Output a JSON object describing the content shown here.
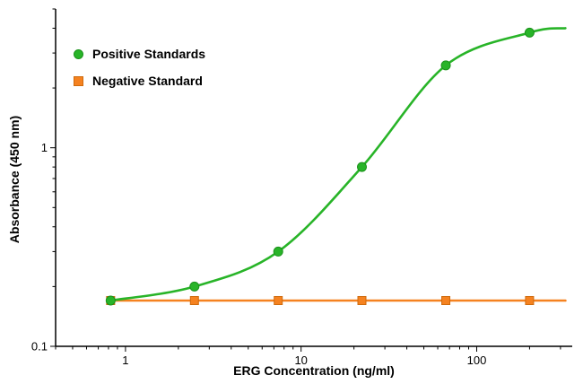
{
  "figure": {
    "background": "#ffffff",
    "axis_color": "#000000"
  },
  "chart_data": {
    "type": "line",
    "x_scale": "log",
    "y_scale": "log",
    "title": "",
    "xlabel": "ERG Concentration (ng/ml)",
    "ylabel": "Absorbance (450 nm)",
    "xlim": [
      0.4,
      350
    ],
    "ylim": [
      0.1,
      5
    ],
    "x_ticks": [
      "1",
      "10",
      "100"
    ],
    "y_ticks": [
      "0.1",
      "1"
    ],
    "grid": false,
    "legend_position": "top-left",
    "x": [
      0.823,
      2.47,
      7.41,
      22.2,
      66.7,
      200
    ],
    "series": [
      {
        "name": "Positive Standards",
        "marker": "circle",
        "color": "#28b428",
        "edge_color": "#1b921b",
        "curve": "sigmoid",
        "values": [
          0.17,
          0.2,
          0.3,
          0.8,
          2.6,
          3.8
        ],
        "curve_extension": {
          "x": 320,
          "y": 4.0
        }
      },
      {
        "name": "Negative Standard",
        "marker": "square",
        "color": "#f58220",
        "edge_color": "#cf6a0c",
        "curve": "straight",
        "values": [
          0.17,
          0.17,
          0.17,
          0.17,
          0.17,
          0.17
        ],
        "curve_extension": {
          "x": 320,
          "y": 0.17
        }
      }
    ]
  }
}
